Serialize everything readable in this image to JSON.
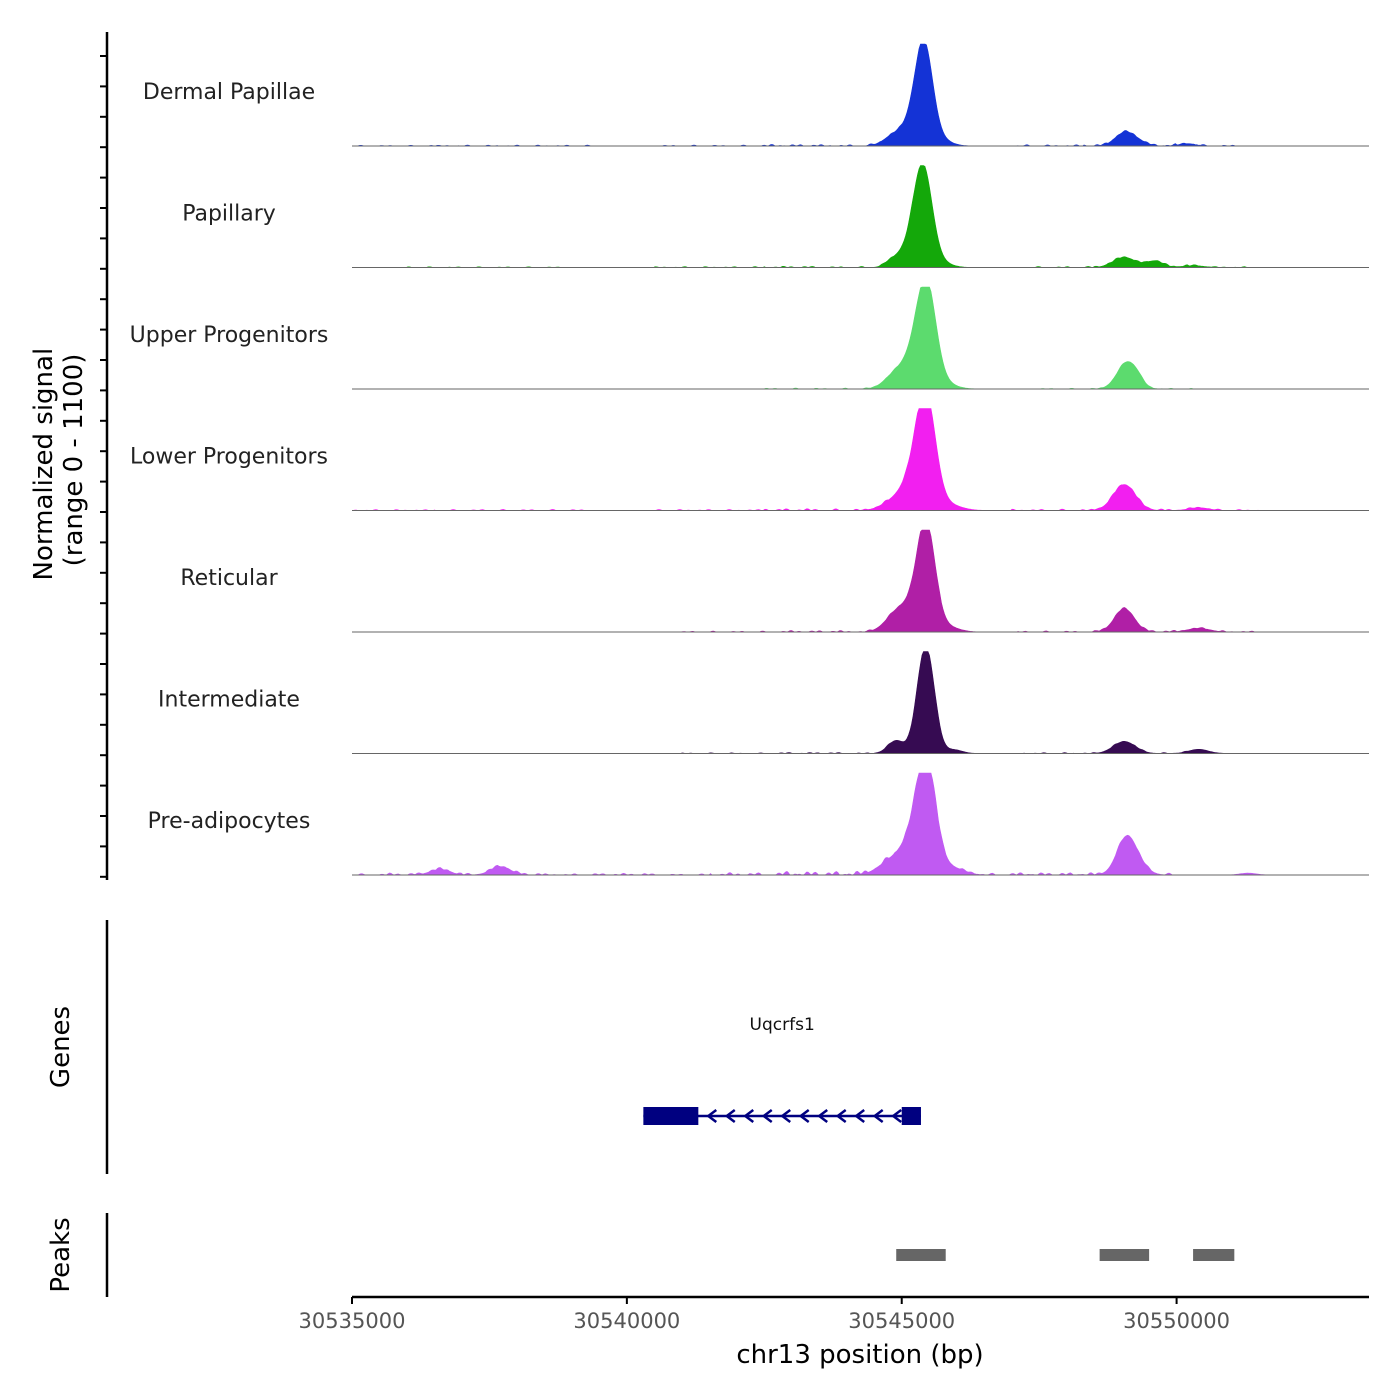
{
  "chart_data": {
    "type": "area",
    "chromosome": "chr13",
    "xlim": [
      30535000,
      30553500
    ],
    "xlabel": "chr13 position (bp)",
    "x_ticks": [
      30535000,
      30540000,
      30545000,
      30550000
    ],
    "x_tick_labels": [
      "30535000",
      "30540000",
      "30545000",
      "30550000"
    ],
    "coverage_ylabel_line1": "Normalized signal",
    "coverage_ylabel_line2": "(range 0 - 1100)",
    "ylim": [
      0,
      1100
    ],
    "tracks": [
      {
        "name": "Dermal Papillae",
        "color": "#1433d6",
        "peaks": [
          [
            30544900,
            130,
            200
          ],
          [
            30545150,
            110,
            150
          ],
          [
            30545400,
            1100,
            160
          ],
          [
            30545700,
            60,
            200
          ],
          [
            30549050,
            140,
            170
          ],
          [
            30549300,
            40,
            150
          ],
          [
            30550200,
            25,
            150
          ]
        ],
        "noise": [
          [
            30535000,
            8
          ],
          [
            30538000,
            10
          ],
          [
            30542000,
            10
          ],
          [
            30544000,
            15
          ],
          [
            30548500,
            14
          ],
          [
            30549800,
            12
          ]
        ]
      },
      {
        "name": "Papillary",
        "color": "#14a80a",
        "peaks": [
          [
            30544800,
            60,
            120
          ],
          [
            30545050,
            150,
            150
          ],
          [
            30545250,
            180,
            130
          ],
          [
            30545400,
            1000,
            160
          ],
          [
            30545700,
            50,
            200
          ],
          [
            30549050,
            110,
            200
          ],
          [
            30549600,
            70,
            150
          ],
          [
            30550300,
            20,
            200
          ]
        ],
        "noise": [
          [
            30537500,
            8
          ],
          [
            30542000,
            10
          ],
          [
            30544000,
            12
          ],
          [
            30548700,
            12
          ],
          [
            30550000,
            10
          ]
        ]
      },
      {
        "name": "Upper Progenitors",
        "color": "#5cdb6e",
        "peaks": [
          [
            30544900,
            170,
            200
          ],
          [
            30545200,
            240,
            170
          ],
          [
            30545450,
            1100,
            170
          ],
          [
            30545750,
            60,
            220
          ],
          [
            30549100,
            290,
            180
          ],
          [
            30549300,
            40,
            100
          ]
        ],
        "noise": [
          [
            30544000,
            10
          ],
          [
            30548800,
            8
          ]
        ]
      },
      {
        "name": "Lower Progenitors",
        "color": "#f21ff0",
        "peaks": [
          [
            30544800,
            80,
            200
          ],
          [
            30545100,
            200,
            180
          ],
          [
            30545300,
            230,
            160
          ],
          [
            30545450,
            1100,
            170
          ],
          [
            30545800,
            70,
            250
          ],
          [
            30549050,
            280,
            200
          ],
          [
            30550400,
            30,
            180
          ]
        ],
        "noise": [
          [
            30535000,
            10
          ],
          [
            30538000,
            12
          ],
          [
            30542000,
            12
          ],
          [
            30544000,
            18
          ],
          [
            30548500,
            15
          ],
          [
            30550000,
            12
          ]
        ]
      },
      {
        "name": "Reticular",
        "color": "#b01fa6",
        "peaks": [
          [
            30544800,
            100,
            180
          ],
          [
            30545000,
            170,
            170
          ],
          [
            30545250,
            200,
            160
          ],
          [
            30545450,
            1100,
            160
          ],
          [
            30545800,
            60,
            220
          ],
          [
            30549050,
            250,
            180
          ],
          [
            30550400,
            40,
            200
          ]
        ],
        "noise": [
          [
            30542500,
            10
          ],
          [
            30544200,
            14
          ],
          [
            30548600,
            12
          ],
          [
            30550000,
            12
          ]
        ]
      },
      {
        "name": "Intermediate",
        "color": "#360b52",
        "peaks": [
          [
            30544900,
            140,
            150
          ],
          [
            30545300,
            130,
            120
          ],
          [
            30545450,
            1100,
            150
          ],
          [
            30545950,
            40,
            150
          ],
          [
            30549050,
            130,
            200
          ],
          [
            30550400,
            45,
            180
          ]
        ],
        "noise": [
          [
            30542500,
            8
          ],
          [
            30544200,
            10
          ],
          [
            30548700,
            10
          ]
        ]
      },
      {
        "name": "Pre-adipocytes",
        "color": "#c05af2",
        "peaks": [
          [
            30536600,
            60,
            180
          ],
          [
            30537700,
            90,
            180
          ],
          [
            30544700,
            90,
            200
          ],
          [
            30545000,
            170,
            200
          ],
          [
            30545250,
            280,
            180
          ],
          [
            30545450,
            1100,
            170
          ],
          [
            30545700,
            70,
            200
          ],
          [
            30546000,
            50,
            200
          ],
          [
            30549100,
            420,
            180
          ],
          [
            30549400,
            40,
            150
          ],
          [
            30551300,
            20,
            150
          ]
        ],
        "noise": [
          [
            30535500,
            15
          ],
          [
            30537000,
            18
          ],
          [
            30539000,
            15
          ],
          [
            30541000,
            12
          ],
          [
            30543000,
            25
          ],
          [
            30544300,
            35
          ],
          [
            30547000,
            20
          ],
          [
            30548500,
            20
          ]
        ]
      }
    ],
    "genes_label": "Genes",
    "gene": {
      "name": "Uqcrfs1",
      "color": "#000080",
      "strand": "-",
      "start": 30540300,
      "end": 30545350,
      "exons": [
        [
          30540300,
          30541300
        ],
        [
          30545000,
          30545350
        ]
      ]
    },
    "peaks_label": "Peaks",
    "peak_color": "#666666",
    "peak_regions": [
      [
        30544900,
        30545800
      ],
      [
        30548600,
        30549500
      ],
      [
        30550300,
        30551050
      ]
    ]
  }
}
